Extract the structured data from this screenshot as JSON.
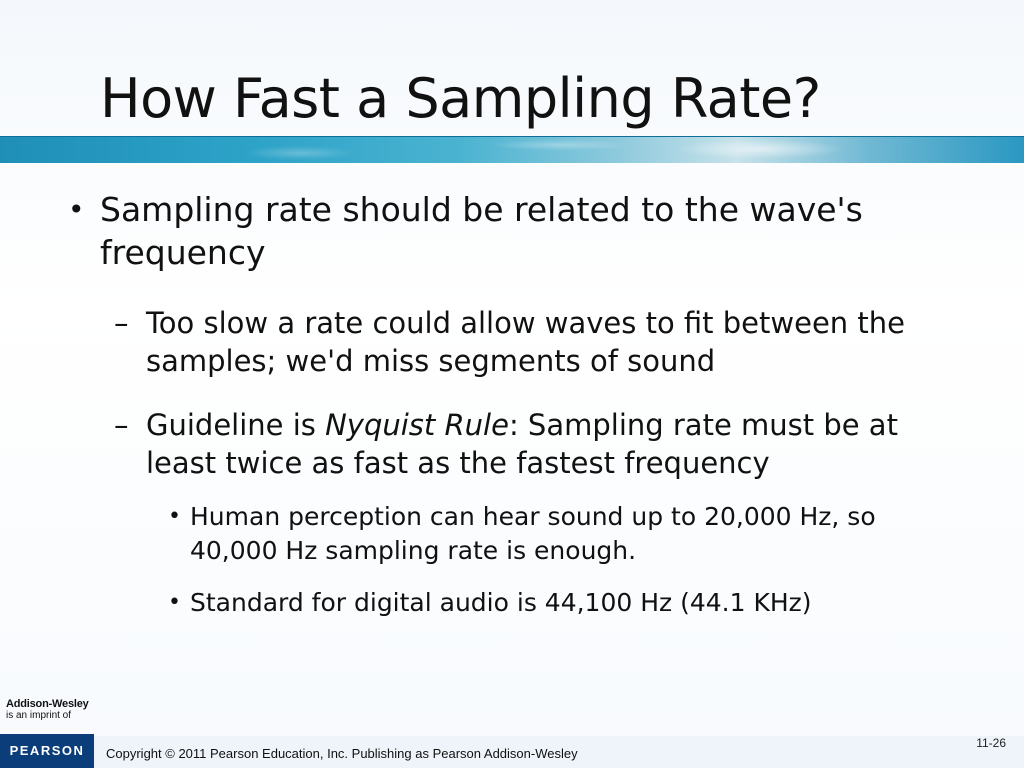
{
  "slide": {
    "title": "How Fast a Sampling Rate?",
    "bullets": {
      "level1": {
        "marker": "•",
        "text": "Sampling rate should be related to the wave's frequency"
      },
      "level2_a": {
        "marker": "–",
        "text": "Too slow a rate could allow waves to fit between the samples; we'd miss segments of sound"
      },
      "level2_b": {
        "marker": "–",
        "prefix": "Guideline is ",
        "emphasis": "Nyquist Rule",
        "suffix": ":  Sampling rate must be at least twice as fast as the fastest frequency"
      },
      "level3_a": {
        "marker": "•",
        "text": "Human perception can hear sound up to 20,000 Hz, so 40,000 Hz sampling rate is enough."
      },
      "level3_b": {
        "marker": "•",
        "text": "Standard for digital audio is 44,100 Hz (44.1 KHz)"
      }
    }
  },
  "footer": {
    "brand_name": "Addison-Wesley",
    "brand_tagline": "is an imprint of",
    "publisher_logo": "PEARSON",
    "copyright": "Copyright © 2011 Pearson Education, Inc. Publishing as Pearson Addison-Wesley",
    "slide_number": "11-26"
  },
  "colors": {
    "band_blue": "#2ea3c8",
    "logo_blue": "#0a3d7a"
  }
}
